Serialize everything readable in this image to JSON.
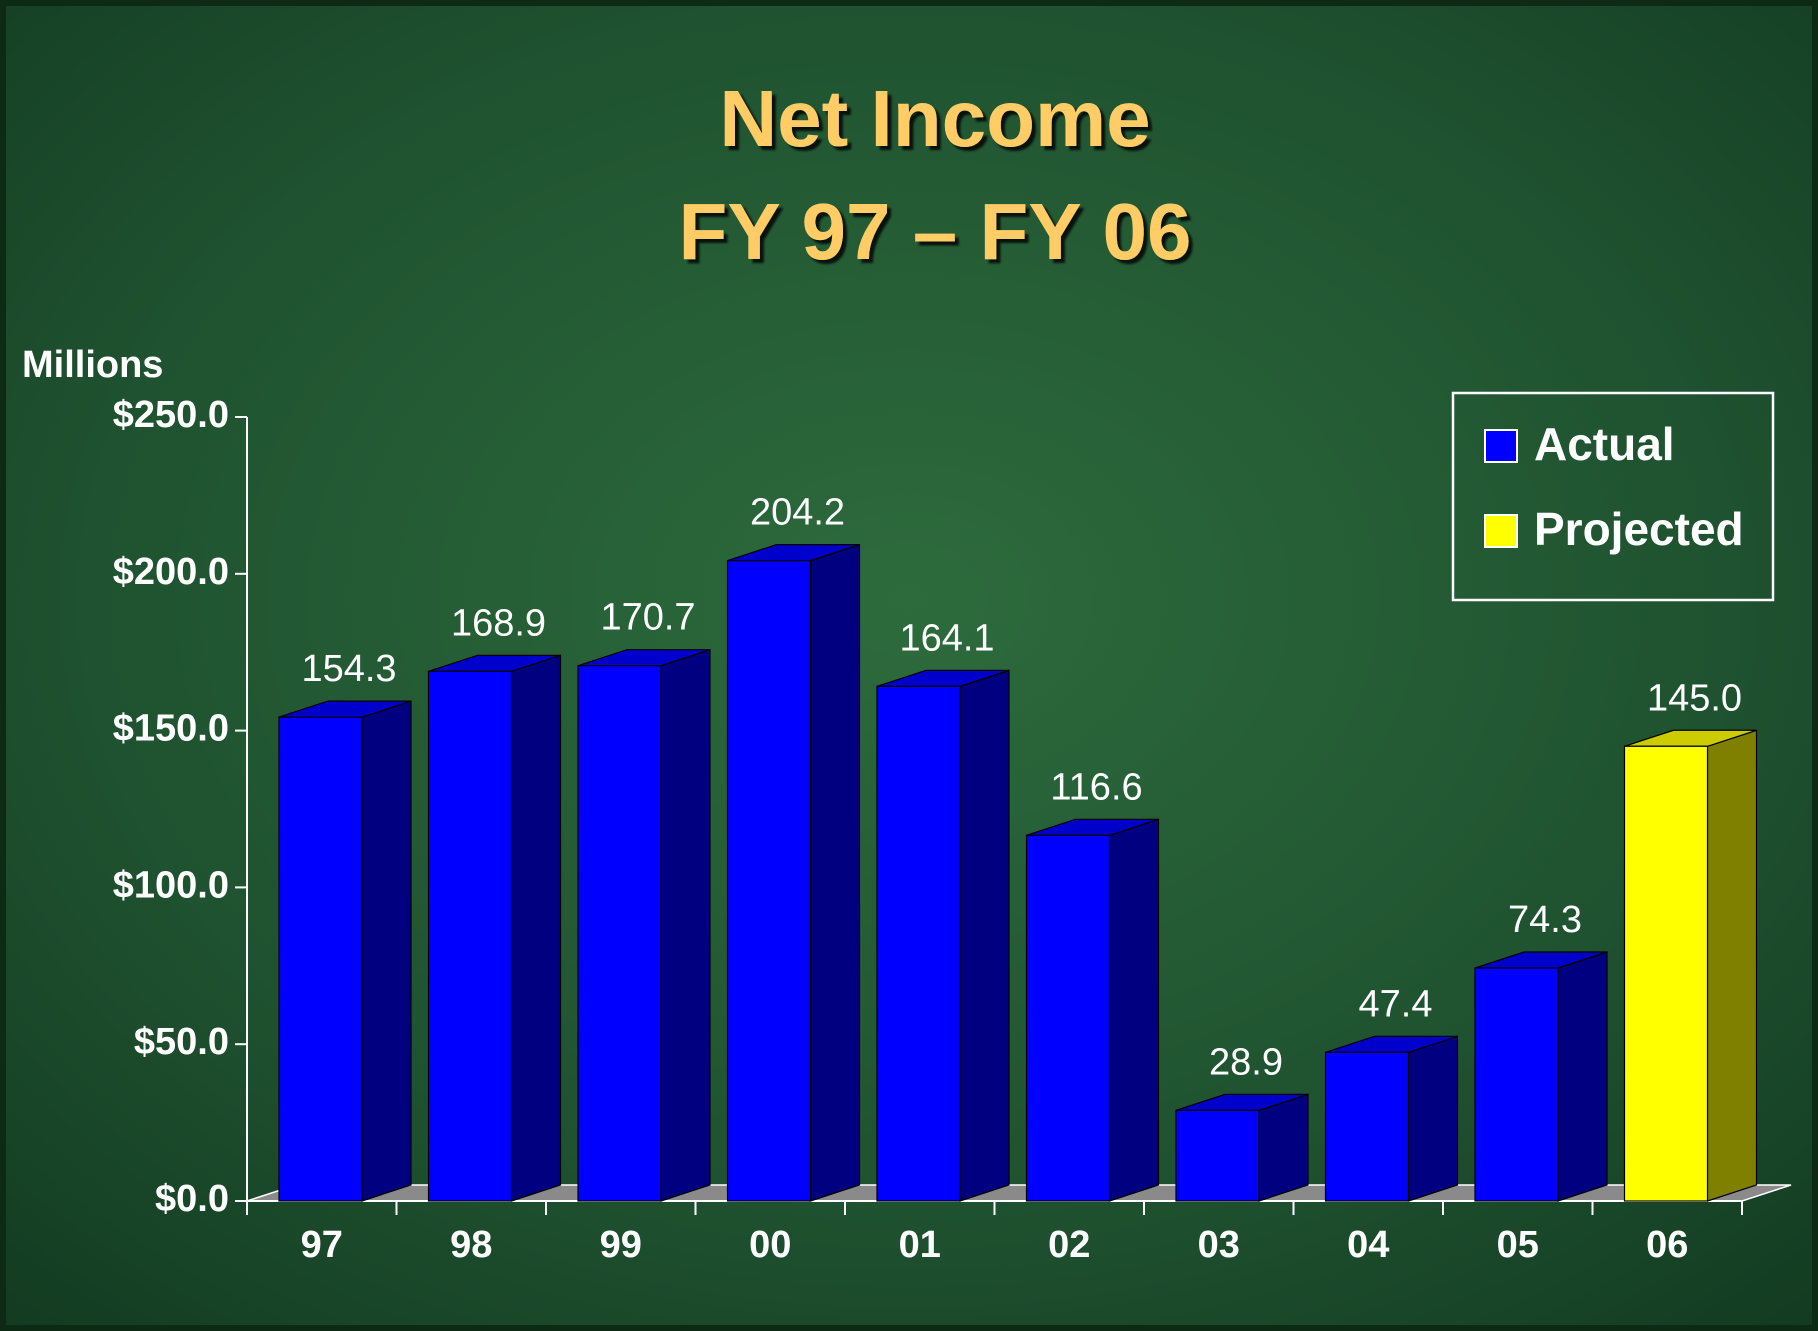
{
  "chart_data": {
    "type": "bar3d",
    "title": "Net Income",
    "subtitle": "FY 97 – FY 06",
    "y_label": "Millions",
    "categories": [
      "97",
      "98",
      "99",
      "00",
      "01",
      "02",
      "03",
      "04",
      "05",
      "06"
    ],
    "series": [
      {
        "name": "Actual",
        "color": "#0000ff",
        "values": [
          154.3,
          168.9,
          170.7,
          204.2,
          164.1,
          116.6,
          28.9,
          47.4,
          74.3,
          null
        ],
        "value_labels": [
          "154.3",
          "168.9",
          "170.7",
          "204.2",
          "164.1",
          "116.6",
          "28.9",
          "47.4",
          "74.3",
          null
        ]
      },
      {
        "name": "Projected",
        "color": "#ffff00",
        "values": [
          null,
          null,
          null,
          null,
          null,
          null,
          null,
          null,
          null,
          145.0
        ],
        "value_labels": [
          null,
          null,
          null,
          null,
          null,
          null,
          null,
          null,
          null,
          "145.0"
        ]
      }
    ],
    "ylim": [
      0,
      250
    ],
    "yticks": [
      {
        "value": 0,
        "label": "$0.0"
      },
      {
        "value": 50,
        "label": "$50.0"
      },
      {
        "value": 100,
        "label": "$100.0"
      },
      {
        "value": 150,
        "label": "$150.0"
      },
      {
        "value": 200,
        "label": "$200.0"
      },
      {
        "value": 250,
        "label": "$250.0"
      }
    ],
    "legend": "upper right"
  }
}
